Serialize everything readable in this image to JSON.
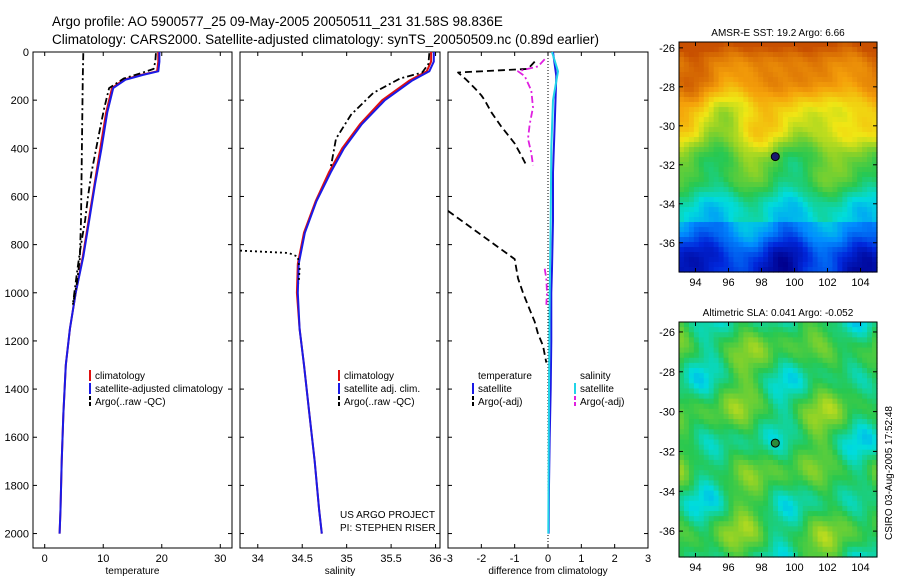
{
  "header": {
    "line1": "Argo profile: AO 5900577_25 09-May-2005 20050511_231 31.58S 98.836E",
    "line2": "Climatology: CARS2000. Satellite-adjusted climatology: synTS_20050509.nc (0.89d earlier)"
  },
  "credit": {
    "project": "US ARGO PROJECT",
    "pi": "PI: STEPHEN RISER",
    "stamp": "CSIRO 03-Aug-2005 17:52:48"
  },
  "colors": {
    "climatology": "#e01010",
    "satellite": "#1a1ae6",
    "argo": "#000000",
    "sal_satellite": "#22d4e8",
    "sal_argo": "#e020e0"
  },
  "chart_data": [
    {
      "type": "line",
      "xlabel": "temperature",
      "ylabel": "",
      "xlim": [
        -2,
        32
      ],
      "ylim": [
        2060,
        0
      ],
      "xticks": [
        0,
        10,
        20,
        30
      ],
      "yticks": [
        0,
        200,
        400,
        600,
        800,
        1000,
        1200,
        1400,
        1600,
        1800,
        2000
      ],
      "legend": [
        "climatology",
        "satellite-adjusted climatology",
        "Argo(..raw -QC)"
      ],
      "legend_position": "lower-right",
      "series": [
        {
          "name": "climatology",
          "color": "#e01010",
          "style": "solid",
          "x": [
            19.4,
            19.4,
            19.2,
            16.5,
            13.5,
            11.5,
            10.5,
            9.5,
            8.5,
            7.5,
            6.5,
            5.3,
            4.3,
            3.6,
            3.2,
            2.9,
            2.7,
            2.55
          ],
          "y": [
            0,
            40,
            80,
            95,
            115,
            150,
            250,
            400,
            550,
            700,
            850,
            1000,
            1150,
            1300,
            1500,
            1700,
            1900,
            2000
          ]
        },
        {
          "name": "satellite-adjusted climatology",
          "color": "#1a1ae6",
          "style": "solid",
          "x": [
            19.6,
            19.6,
            19.4,
            16.8,
            13.8,
            11.7,
            10.7,
            9.7,
            8.6,
            7.6,
            6.6,
            5.3,
            4.3,
            3.6,
            3.2,
            2.9,
            2.7,
            2.55
          ],
          "y": [
            0,
            40,
            80,
            95,
            115,
            150,
            250,
            400,
            550,
            700,
            850,
            1000,
            1150,
            1300,
            1500,
            1700,
            1900,
            2000
          ]
        },
        {
          "name": "Argo(..raw -QC)",
          "color": "#000000",
          "style": "dashdot",
          "x": [
            19.0,
            18.9,
            18.6,
            16.8,
            13.5,
            11.0,
            10.2,
            9.6,
            8.8,
            8.0,
            7.4,
            6.9,
            6.2,
            5.6,
            4.8
          ],
          "y": [
            5,
            40,
            70,
            85,
            110,
            150,
            230,
            300,
            400,
            500,
            600,
            700,
            800,
            900,
            1050
          ]
        },
        {
          "name": "Argo raw",
          "color": "#000000",
          "style": "dashdot",
          "x": [
            6.6,
            6.5,
            6.4,
            6.3,
            6.2,
            6.0,
            5.5,
            4.8
          ],
          "y": [
            5,
            100,
            300,
            500,
            700,
            860,
            960,
            1050
          ]
        }
      ]
    },
    {
      "type": "line",
      "xlabel": "salinity",
      "ylabel": "",
      "xlim": [
        33.8,
        36.05
      ],
      "ylim": [
        2060,
        0
      ],
      "xticks": [
        34,
        34.5,
        35,
        35.5,
        36
      ],
      "legend": [
        "climatology",
        "satellite adj. clim.",
        "Argo(..raw -QC)"
      ],
      "legend_position": "lower-right",
      "series": [
        {
          "name": "climatology",
          "color": "#e01010",
          "style": "solid",
          "x": [
            35.95,
            35.95,
            35.9,
            35.7,
            35.4,
            35.15,
            34.95,
            34.8,
            34.65,
            34.52,
            34.45,
            34.44,
            34.47,
            34.52,
            34.58,
            34.64,
            34.69,
            34.72
          ],
          "y": [
            0,
            40,
            80,
            120,
            200,
            300,
            400,
            500,
            620,
            750,
            880,
            1000,
            1150,
            1300,
            1500,
            1700,
            1900,
            2000
          ]
        },
        {
          "name": "satellite adj. clim.",
          "color": "#1a1ae6",
          "style": "solid",
          "x": [
            35.98,
            35.98,
            35.93,
            35.73,
            35.43,
            35.17,
            34.97,
            34.82,
            34.66,
            34.53,
            34.46,
            34.45,
            34.47,
            34.52,
            34.58,
            34.64,
            34.69,
            34.72
          ],
          "y": [
            0,
            40,
            80,
            120,
            200,
            300,
            400,
            500,
            620,
            750,
            880,
            1000,
            1150,
            1300,
            1500,
            1700,
            1900,
            2000
          ]
        },
        {
          "name": "Argo(..raw -QC)",
          "color": "#000000",
          "style": "dashdot",
          "x": [
            35.93,
            35.92,
            35.85,
            35.6,
            35.3,
            35.05,
            34.88,
            34.82
          ],
          "y": [
            5,
            50,
            85,
            110,
            170,
            260,
            360,
            480
          ]
        },
        {
          "name": "Argo raw",
          "color": "#000000",
          "style": "dotted",
          "x": [
            33.8,
            34.35,
            34.45,
            34.47,
            34.46
          ],
          "y": [
            825,
            835,
            850,
            900,
            960
          ]
        }
      ]
    },
    {
      "type": "line",
      "xlabel": "difference from climatology",
      "ylabel": "",
      "xlim": [
        -3,
        3
      ],
      "ylim": [
        2060,
        0
      ],
      "xticks": [
        -3,
        -2,
        -1,
        0,
        1,
        2,
        3
      ],
      "legend": [
        "temperature",
        "satellite",
        "Argo(-adj)",
        "salinity",
        "satellite",
        "Argo(-adj)"
      ],
      "legend_position": "lower",
      "series": [
        {
          "name": "temperature satellite",
          "color": "#1a1ae6",
          "style": "solid",
          "x": [
            0.15,
            0.25,
            0.2,
            0.15,
            0.15,
            0.12,
            0.1,
            0.1,
            0.08,
            0.05,
            0.03,
            0.02
          ],
          "y": [
            0,
            100,
            300,
            500,
            700,
            900,
            1000,
            1200,
            1400,
            1600,
            1800,
            2000
          ]
        },
        {
          "name": "salinity satellite",
          "color": "#22d4e8",
          "style": "solid",
          "x": [
            0.12,
            0.3,
            0.15,
            0.1,
            0.08,
            0.05,
            0.03,
            0.02,
            0.01
          ],
          "y": [
            0,
            80,
            200,
            400,
            700,
            1000,
            1400,
            1700,
            2000
          ]
        },
        {
          "name": "temperature Argo(-adj)",
          "color": "#000000",
          "style": "dashed",
          "x": [
            -0.4,
            -0.6,
            -2.7,
            -2.45,
            -2.2,
            -2.0,
            -1.9,
            -1.7,
            -1.4,
            -1.0,
            -0.8,
            -0.65
          ],
          "y": [
            40,
            70,
            85,
            115,
            150,
            180,
            200,
            250,
            310,
            380,
            430,
            470
          ]
        },
        {
          "name": "temperature Argo(-adj) deep",
          "color": "#000000",
          "style": "dashed",
          "x": [
            -3.0,
            -1.0,
            -0.9,
            -0.75,
            -0.55,
            -0.4,
            -0.3,
            -0.15,
            -0.05
          ],
          "y": [
            660,
            860,
            940,
            1000,
            1070,
            1120,
            1170,
            1220,
            1290
          ]
        },
        {
          "name": "salinity Argo(-adj)",
          "color": "#e020e0",
          "style": "dashdot",
          "x": [
            -0.1,
            -0.3,
            -0.9,
            -0.7,
            -0.5,
            -0.45,
            -0.55,
            -0.6,
            -0.5,
            -0.45
          ],
          "y": [
            30,
            60,
            80,
            100,
            160,
            230,
            300,
            360,
            420,
            470
          ]
        },
        {
          "name": "salinity Argo(-adj) deep",
          "color": "#e020e0",
          "style": "dashdot",
          "x": [
            -0.1,
            -0.05,
            -0.03,
            -0.05
          ],
          "y": [
            900,
            940,
            1000,
            1050
          ]
        }
      ]
    },
    {
      "type": "heatmap",
      "title": "AMSR-E SST: 19.2 Argo: 6.66",
      "xticks": [
        94,
        96,
        98,
        100,
        102,
        104
      ],
      "yticks": [
        -26,
        -28,
        -30,
        -32,
        -34,
        -36
      ],
      "xlim": [
        93,
        105
      ],
      "ylim": [
        -37.5,
        -25.7
      ],
      "marker": {
        "lon": 98.836,
        "lat": -31.58
      }
    },
    {
      "type": "heatmap",
      "title": "Altimetric SLA: 0.041 Argo: -0.052",
      "xticks": [
        94,
        96,
        98,
        100,
        102,
        104
      ],
      "yticks": [
        -26,
        -28,
        -30,
        -32,
        -34,
        -36
      ],
      "xlim": [
        93,
        105
      ],
      "ylim": [
        -37.3,
        -25.5
      ],
      "marker": {
        "lon": 98.836,
        "lat": -31.58
      }
    }
  ]
}
